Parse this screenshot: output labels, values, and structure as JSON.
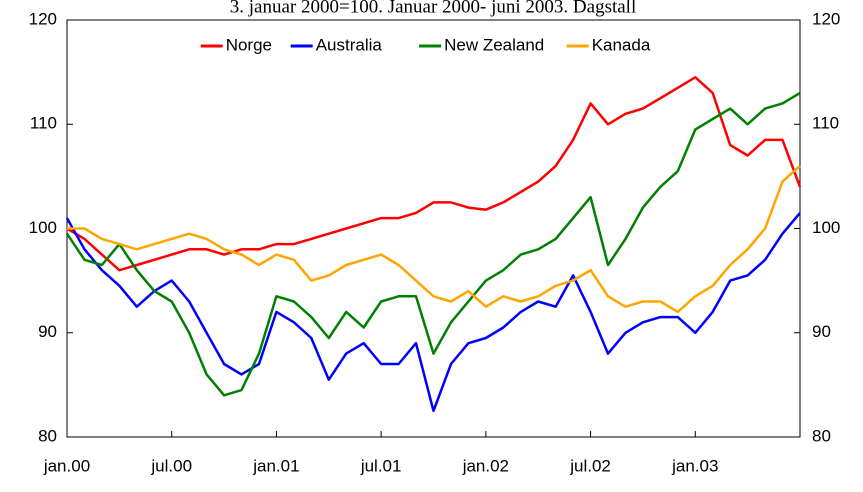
{
  "chart_data": {
    "type": "line",
    "title": "3. januar 2000=100. Januar 2000- juni 2003. Dagstall",
    "categories": [
      "jan.00",
      null,
      null,
      null,
      null,
      null,
      "jul.00",
      null,
      null,
      null,
      null,
      null,
      "jan.01",
      null,
      null,
      null,
      null,
      null,
      "jul.01",
      null,
      null,
      null,
      null,
      null,
      "jan.02",
      null,
      null,
      null,
      null,
      null,
      "jul.02",
      null,
      null,
      null,
      null,
      null,
      "jan.03",
      null,
      null,
      null,
      null,
      null,
      null
    ],
    "series": [
      {
        "name": "Norge",
        "color": "#ff0000",
        "values": [
          100,
          99,
          97.5,
          96,
          96.5,
          97,
          97.5,
          98,
          98,
          97.5,
          98,
          98,
          98.5,
          98.5,
          99,
          99.5,
          100,
          100.5,
          101,
          101,
          101.5,
          102.5,
          102.5,
          102,
          101.8,
          102.5,
          103.5,
          104.5,
          106,
          108.5,
          112,
          110,
          111,
          111.5,
          112.5,
          113.5,
          114.5,
          113,
          108,
          107,
          108.5,
          108.5,
          104
        ]
      },
      {
        "name": "Australia",
        "color": "#0000ff",
        "values": [
          101,
          98,
          96,
          94.5,
          92.5,
          94,
          95,
          93,
          90,
          87,
          86,
          87,
          92,
          91,
          89.5,
          85.5,
          88,
          89,
          87,
          87,
          89,
          82.5,
          87,
          89,
          89.5,
          90.5,
          92,
          93,
          92.5,
          95.5,
          92,
          88,
          90,
          91,
          91.5,
          91.5,
          90,
          92,
          95,
          95.5,
          97,
          99.5,
          101.5
        ]
      },
      {
        "name": "New Zealand",
        "color": "#008000",
        "values": [
          99.5,
          97,
          96.5,
          98.5,
          96,
          94,
          93,
          90,
          86,
          84,
          84.5,
          88,
          93.5,
          93,
          91.5,
          89.5,
          92,
          90.5,
          93,
          93.5,
          93.5,
          88,
          91,
          93,
          95,
          96,
          97.5,
          98,
          99,
          101,
          103,
          96.5,
          99,
          102,
          104,
          105.5,
          109.5,
          110.5,
          111.5,
          110,
          111.5,
          112,
          113
        ]
      },
      {
        "name": "Kanada",
        "color": "#ffa500",
        "values": [
          100,
          100,
          99,
          98.5,
          98,
          98.5,
          99,
          99.5,
          99,
          98,
          97.5,
          96.5,
          97.5,
          97,
          95,
          95.5,
          96.5,
          97,
          97.5,
          96.5,
          95,
          93.5,
          93,
          94,
          92.5,
          93.5,
          93,
          93.5,
          94.5,
          95,
          96,
          93.5,
          92.5,
          93,
          93,
          92,
          93.5,
          94.5,
          96.5,
          98,
          100,
          104.5,
          106
        ]
      }
    ],
    "ylim": [
      80,
      120
    ],
    "yticks": [
      80,
      90,
      100,
      110,
      120
    ],
    "y2lim": [
      80,
      120
    ],
    "y2ticks": [
      80,
      90,
      100,
      110,
      120
    ],
    "legend": "top"
  }
}
